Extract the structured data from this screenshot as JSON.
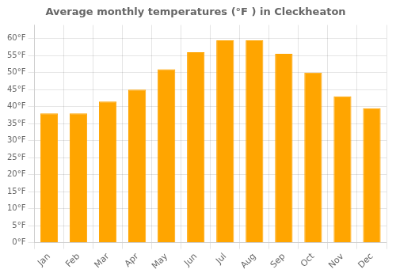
{
  "chart_data": {
    "type": "bar",
    "title": "Average monthly temperatures (°F ) in Cleckheaton",
    "categories": [
      "Jan",
      "Feb",
      "Mar",
      "Apr",
      "May",
      "Jun",
      "Jul",
      "Aug",
      "Sep",
      "Oct",
      "Nov",
      "Dec"
    ],
    "values": [
      38,
      38,
      41.5,
      45,
      51,
      56,
      59.5,
      59.5,
      55.5,
      50,
      43,
      39.5
    ],
    "color": "#FFA500",
    "ylim": [
      0,
      64
    ],
    "yticks": [
      {
        "value": 0,
        "label": "0°F"
      },
      {
        "value": 5,
        "label": "5°F"
      },
      {
        "value": 10,
        "label": "10°F"
      },
      {
        "value": 15,
        "label": "15°F"
      },
      {
        "value": 20,
        "label": "20°F"
      },
      {
        "value": 25,
        "label": "25°F"
      },
      {
        "value": 30,
        "label": "30°F"
      },
      {
        "value": 35,
        "label": "35°F"
      },
      {
        "value": 40,
        "label": "40°F"
      },
      {
        "value": 45,
        "label": "45°F"
      },
      {
        "value": 50,
        "label": "50°F"
      },
      {
        "value": 55,
        "label": "55°F"
      },
      {
        "value": 60,
        "label": "60°F"
      }
    ],
    "grid": true
  }
}
